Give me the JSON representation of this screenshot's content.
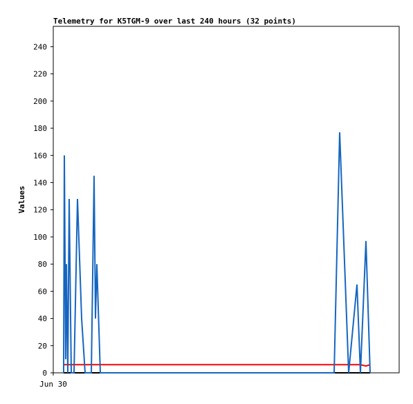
{
  "chart_data": {
    "type": "line",
    "title": "Telemetry for K5TGM-9 over last 240 hours (32 points)",
    "ylabel": "Values",
    "xlim": [
      0,
      240
    ],
    "xticks": [
      {
        "value": 0,
        "label": "Jun 30"
      }
    ],
    "ylim": [
      0,
      255
    ],
    "yticks": [
      0,
      20,
      40,
      60,
      80,
      100,
      120,
      140,
      160,
      180,
      200,
      220,
      240
    ],
    "series": [
      {
        "color": "#000000",
        "x": [
          7.2,
          219.84
        ],
        "values": [
          0,
          0
        ]
      },
      {
        "color": "#ff0000",
        "x": [
          7.2,
          213.12,
          216.96,
          219.84
        ],
        "values": [
          6,
          6,
          5,
          6
        ]
      },
      {
        "color": "#1565c0",
        "x": [
          7.2,
          7.68,
          8.64,
          9.12,
          10.08,
          11.04,
          12.48,
          14.4,
          16.8,
          19.68,
          22.08,
          26.4,
          28.32,
          29.28,
          30.24,
          32.64,
          194.88,
          198.72,
          204.96,
          210.72,
          213.12,
          216.96,
          219.84
        ],
        "values": [
          0,
          160,
          10,
          80,
          0,
          128,
          0,
          0,
          128,
          40,
          0,
          0,
          145,
          40,
          80,
          0,
          0,
          177,
          0,
          65,
          0,
          97,
          0
        ]
      }
    ]
  }
}
